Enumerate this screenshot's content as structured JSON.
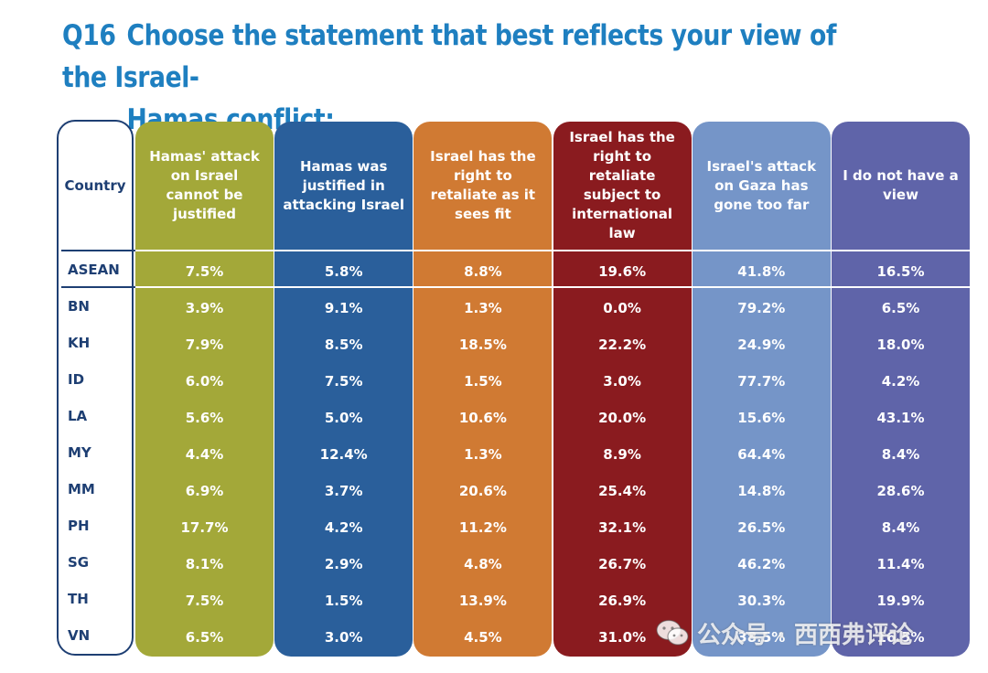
{
  "title": {
    "number": "Q16",
    "line1": "Choose the statement that best reflects your view of the Israel-",
    "line2": "Hamas conflict:"
  },
  "colors": {
    "title": "#1e7fc0",
    "country_border": "#1e3f73",
    "series": [
      "#a3a839",
      "#2a5f9b",
      "#d07a33",
      "#8a1b1f",
      "#7595c8",
      "#5f64a9"
    ]
  },
  "watermark": {
    "text": "公众号 · 西西弗评论",
    "icon": "wechat-icon"
  },
  "chart_data": {
    "type": "table",
    "row_header_label": "Country",
    "columns": [
      "Hamas' attack on Israel cannot be justified",
      "Hamas was justified in attacking Israel",
      "Israel has the right to retaliate as it sees fit",
      "Israel has the right to retaliate subject to international law",
      "Israel's attack on Gaza has gone too far",
      "I do not have a view"
    ],
    "rows": [
      {
        "country": "ASEAN",
        "values": [
          "7.5%",
          "5.8%",
          "8.8%",
          "19.6%",
          "41.8%",
          "16.5%"
        ]
      },
      {
        "country": "BN",
        "values": [
          "3.9%",
          "9.1%",
          "1.3%",
          "0.0%",
          "79.2%",
          "6.5%"
        ]
      },
      {
        "country": "KH",
        "values": [
          "7.9%",
          "8.5%",
          "18.5%",
          "22.2%",
          "24.9%",
          "18.0%"
        ]
      },
      {
        "country": "ID",
        "values": [
          "6.0%",
          "7.5%",
          "1.5%",
          "3.0%",
          "77.7%",
          "4.2%"
        ]
      },
      {
        "country": "LA",
        "values": [
          "5.6%",
          "5.0%",
          "10.6%",
          "20.0%",
          "15.6%",
          "43.1%"
        ]
      },
      {
        "country": "MY",
        "values": [
          "4.4%",
          "12.4%",
          "1.3%",
          "8.9%",
          "64.4%",
          "8.4%"
        ]
      },
      {
        "country": "MM",
        "values": [
          "6.9%",
          "3.7%",
          "20.6%",
          "25.4%",
          "14.8%",
          "28.6%"
        ]
      },
      {
        "country": "PH",
        "values": [
          "17.7%",
          "4.2%",
          "11.2%",
          "32.1%",
          "26.5%",
          "8.4%"
        ]
      },
      {
        "country": "SG",
        "values": [
          "8.1%",
          "2.9%",
          "4.8%",
          "26.7%",
          "46.2%",
          "11.4%"
        ]
      },
      {
        "country": "TH",
        "values": [
          "7.5%",
          "1.5%",
          "13.9%",
          "26.9%",
          "30.3%",
          "19.9%"
        ]
      },
      {
        "country": "VN",
        "values": [
          "6.5%",
          "3.0%",
          "4.5%",
          "31.0%",
          "38.5%",
          "16.5%"
        ]
      }
    ]
  }
}
